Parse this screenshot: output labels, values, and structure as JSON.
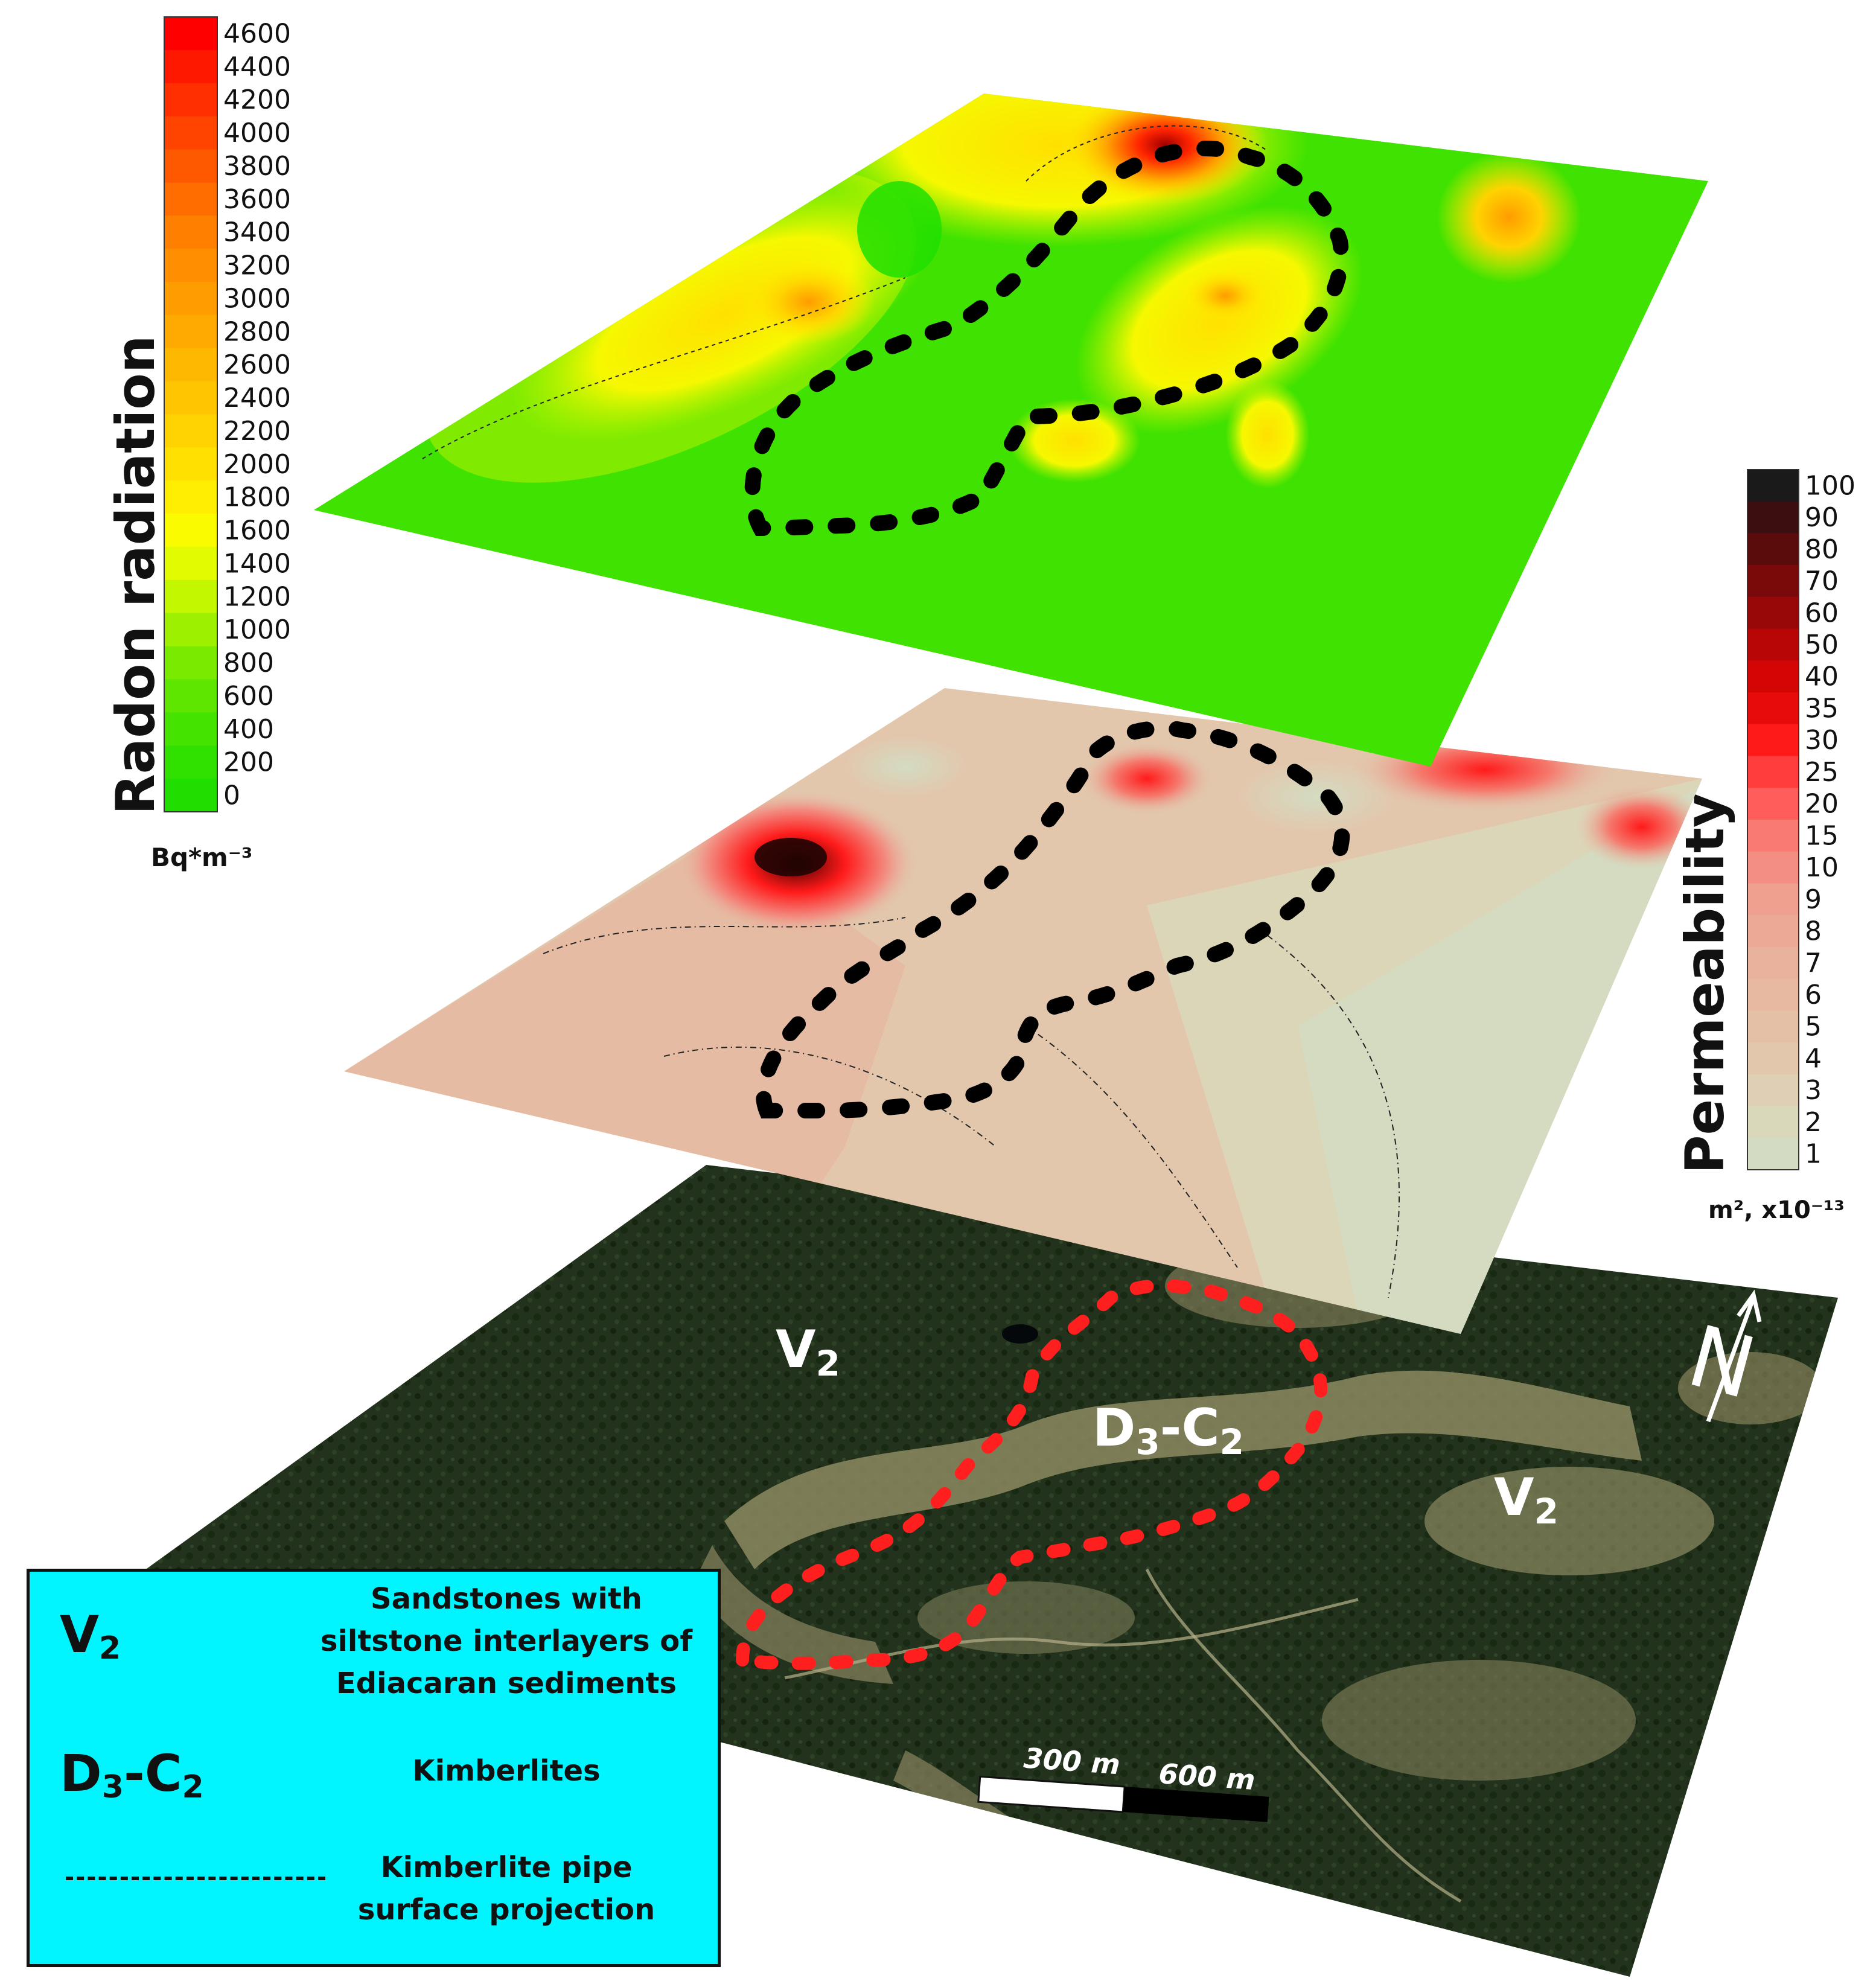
{
  "radon_scale": {
    "title": "Radon radiation",
    "unit": "Bq*m⁻³",
    "ticks": [
      "4600",
      "4400",
      "4200",
      "4000",
      "3800",
      "3600",
      "3400",
      "3200",
      "3000",
      "2800",
      "2600",
      "2400",
      "2200",
      "2000",
      "1800",
      "1600",
      "1400",
      "1200",
      "1000",
      "800",
      "600",
      "400",
      "200",
      "0"
    ],
    "colors": [
      "#ff0000",
      "#ff1800",
      "#ff2f00",
      "#ff4400",
      "#ff5900",
      "#ff6c00",
      "#ff7f00",
      "#ff8f00",
      "#ff9c00",
      "#ffaa00",
      "#ffb800",
      "#ffc500",
      "#ffd300",
      "#ffe000",
      "#ffee00",
      "#fbfb00",
      "#e2fb00",
      "#c2f700",
      "#9cf000",
      "#7aea00",
      "#5ee600",
      "#44e300",
      "#30e100",
      "#20df00"
    ]
  },
  "permeability_scale": {
    "title": "Permeability",
    "unit": "m², x10⁻¹³",
    "ticks": [
      "100",
      "90",
      "80",
      "70",
      "60",
      "50",
      "40",
      "35",
      "30",
      "25",
      "20",
      "15",
      "10",
      "9",
      "8",
      "7",
      "6",
      "5",
      "4",
      "3",
      "2",
      "1"
    ],
    "colors": [
      "#1a1a1a",
      "#3b0f0f",
      "#5a0c0c",
      "#7a0a0a",
      "#990808",
      "#b80606",
      "#d40505",
      "#e80b0b",
      "#ff1a1a",
      "#ff3d3d",
      "#ff5c5c",
      "#f87a72",
      "#f28e82",
      "#efa08e",
      "#eca995",
      "#e9b29c",
      "#e6b9a0",
      "#e4c0a6",
      "#e2c7ad",
      "#dfcfb4",
      "#dad8bb",
      "#d3dcc2"
    ]
  },
  "map_labels": {
    "v2_left": "V",
    "v2_left_sub": "2",
    "v2_right": "V",
    "v2_right_sub": "2",
    "dc_a": "D",
    "dc_a_sub": "3",
    "dc_dash": "-C",
    "dc_b_sub": "2"
  },
  "north_arrow": "N",
  "scale_bar": {
    "label_300": "300 m",
    "label_600": "600 m"
  },
  "legend": {
    "v2_symbol": "V",
    "v2_sub": "2",
    "v2_desc": "Sandstones with siltstone interlayers of Ediacaran sediments",
    "dc_symbol_a": "D",
    "dc_sub_a": "3",
    "dc_symbol_b": "-C",
    "dc_sub_b": "2",
    "dc_desc": "Kimberlites",
    "pipe_desc": "Kimberlite pipe surface projection"
  },
  "colors": {
    "pipe_outline_top": "#000000",
    "pipe_outline_bottom": "#ff1f1f",
    "legend_bg": "#00f5ff",
    "forest_dark": "#1f2e1a",
    "clearing": "#8c8a62"
  }
}
